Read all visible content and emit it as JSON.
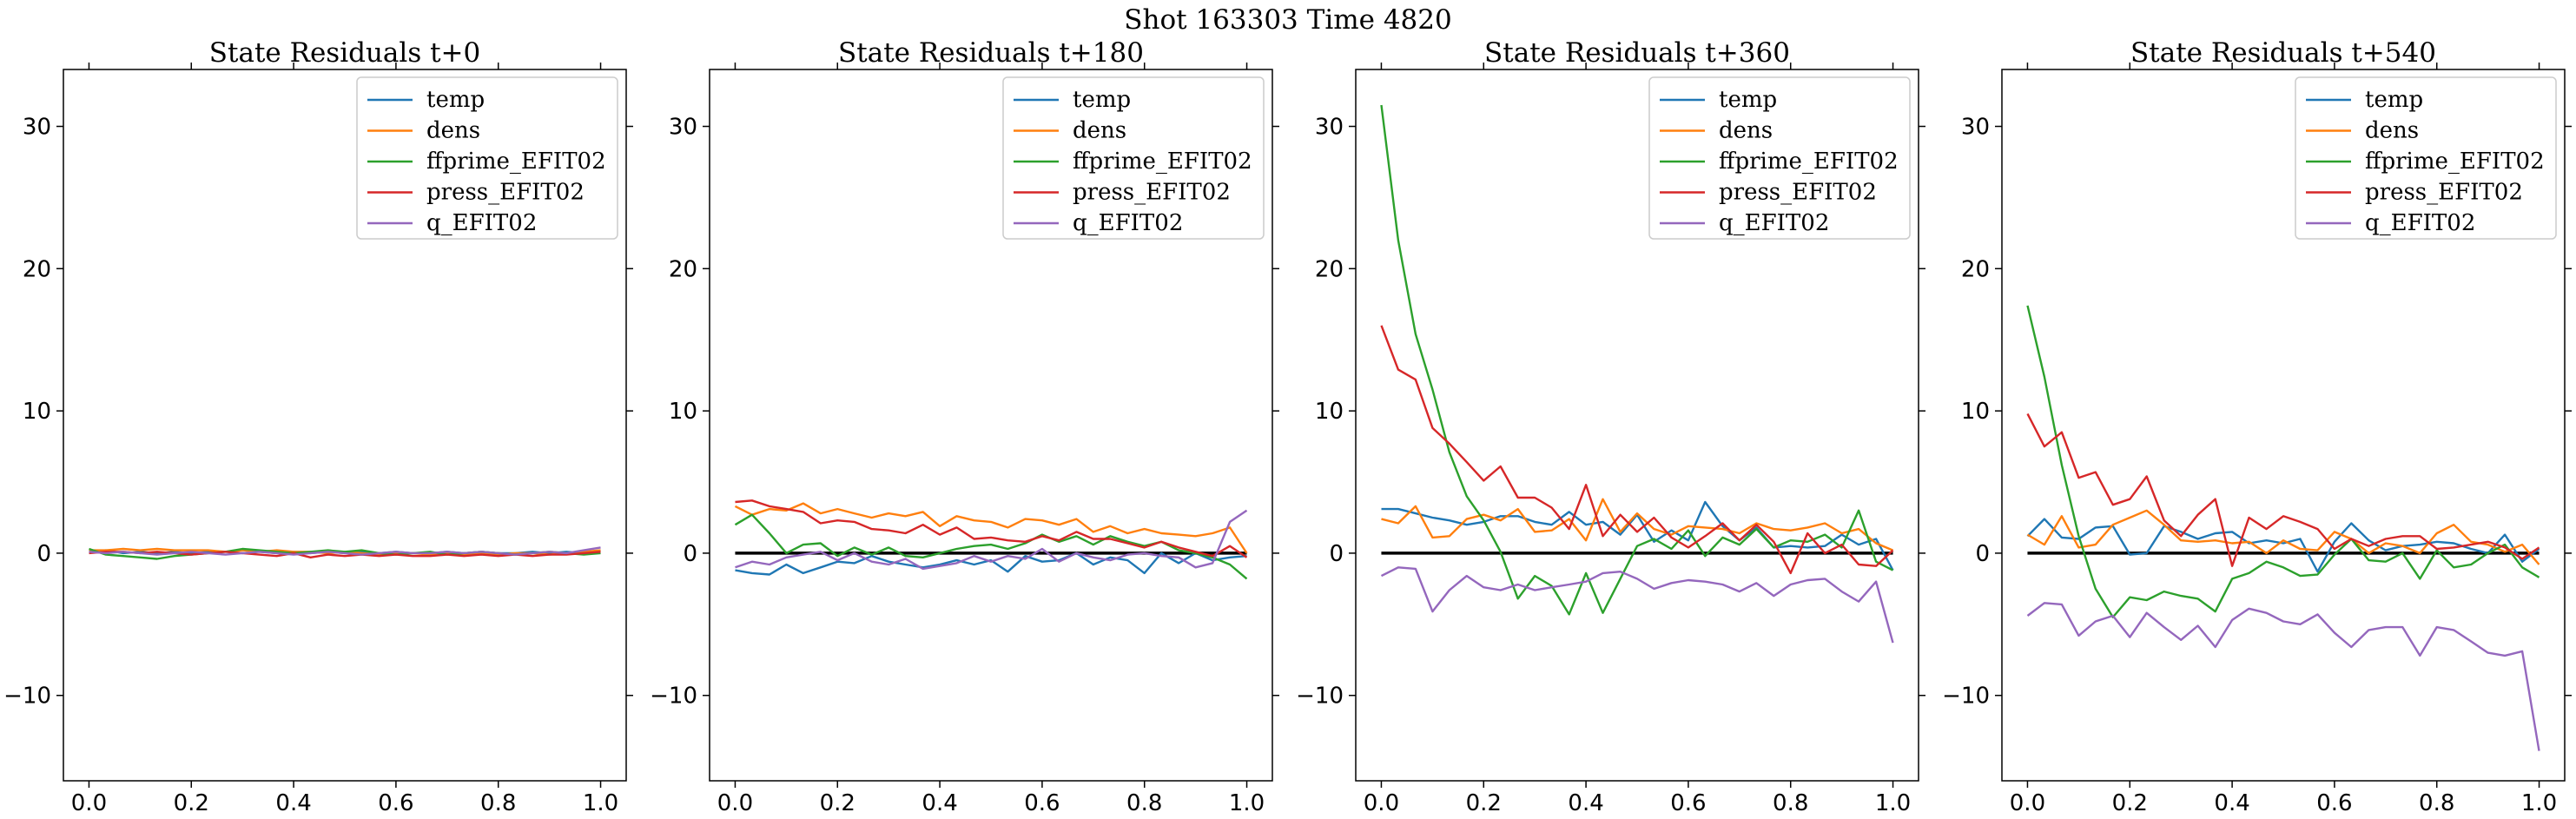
{
  "figure": {
    "suptitle": "Shot 163303   Time 4820"
  },
  "chart_data": [
    {
      "type": "line",
      "title": "State Residuals t+0",
      "xlim": [
        -0.05,
        1.05
      ],
      "ylim": [
        -16,
        34
      ],
      "xticks": [
        0.0,
        0.2,
        0.4,
        0.6,
        0.8,
        1.0
      ],
      "xtick_labels": [
        "0.0",
        "0.2",
        "0.4",
        "0.6",
        "0.8",
        "1.0"
      ],
      "yticks": [
        -10,
        0,
        10,
        20,
        30
      ],
      "ytick_labels": [
        "−10",
        "0",
        "10",
        "20",
        "30"
      ],
      "legend": "top-right",
      "grid": false,
      "zero_line": false,
      "x": [
        0.0,
        0.033,
        0.067,
        0.1,
        0.133,
        0.167,
        0.2,
        0.233,
        0.267,
        0.3,
        0.333,
        0.367,
        0.4,
        0.433,
        0.467,
        0.5,
        0.533,
        0.567,
        0.6,
        0.633,
        0.667,
        0.7,
        0.733,
        0.767,
        0.8,
        0.833,
        0.867,
        0.9,
        0.933,
        0.967,
        1.0
      ],
      "series": [
        {
          "name": "temp",
          "color": "#1f77b4",
          "values": [
            0.1,
            0.2,
            0.0,
            0.1,
            0.0,
            0.1,
            0.0,
            0.1,
            0.1,
            0.0,
            0.1,
            0.0,
            0.1,
            0.0,
            0.1,
            0.0,
            0.1,
            0.0,
            0.1,
            0.0,
            0.0,
            0.1,
            0.0,
            0.1,
            0.0,
            0.0,
            0.1,
            0.0,
            0.1,
            0.0,
            0.2
          ]
        },
        {
          "name": "dens",
          "color": "#ff7f0e",
          "values": [
            0.2,
            0.2,
            0.3,
            0.2,
            0.3,
            0.2,
            0.2,
            0.2,
            0.1,
            0.2,
            0.1,
            0.2,
            0.1,
            0.1,
            0.0,
            0.1,
            0.0,
            -0.1,
            0.0,
            0.0,
            -0.1,
            0.0,
            -0.1,
            0.0,
            -0.1,
            0.0,
            0.0,
            -0.1,
            0.0,
            0.1,
            0.2
          ]
        },
        {
          "name": "ffprime_EFIT02",
          "color": "#2ca02c",
          "values": [
            0.3,
            -0.1,
            -0.2,
            -0.3,
            -0.4,
            -0.2,
            -0.1,
            0.0,
            0.1,
            0.3,
            0.2,
            0.1,
            0.0,
            0.1,
            0.2,
            0.1,
            0.2,
            0.0,
            -0.1,
            0.0,
            0.1,
            -0.1,
            0.0,
            0.1,
            0.0,
            -0.1,
            0.0,
            0.1,
            0.0,
            -0.1,
            0.0
          ]
        },
        {
          "name": "press_EFIT02",
          "color": "#d62728",
          "values": [
            0.0,
            0.1,
            0.1,
            0.0,
            0.1,
            0.0,
            -0.1,
            0.0,
            0.1,
            0.0,
            -0.1,
            -0.2,
            0.0,
            -0.3,
            -0.1,
            -0.2,
            -0.1,
            -0.2,
            -0.1,
            -0.2,
            -0.2,
            -0.1,
            -0.2,
            -0.1,
            -0.2,
            -0.1,
            -0.2,
            -0.1,
            -0.1,
            0.0,
            0.1
          ]
        },
        {
          "name": "q_EFIT02",
          "color": "#9467bd",
          "values": [
            0.1,
            0.0,
            0.1,
            0.0,
            -0.1,
            0.0,
            0.1,
            0.0,
            -0.1,
            0.0,
            0.1,
            0.0,
            -0.1,
            0.0,
            0.1,
            0.0,
            -0.1,
            0.0,
            0.1,
            0.0,
            0.0,
            0.1,
            0.0,
            0.1,
            0.0,
            -0.1,
            0.0,
            0.1,
            0.0,
            0.2,
            0.4
          ]
        }
      ]
    },
    {
      "type": "line",
      "title": "State Residuals t+180",
      "xlim": [
        -0.05,
        1.05
      ],
      "ylim": [
        -16,
        34
      ],
      "xticks": [
        0.0,
        0.2,
        0.4,
        0.6,
        0.8,
        1.0
      ],
      "xtick_labels": [
        "0.0",
        "0.2",
        "0.4",
        "0.6",
        "0.8",
        "1.0"
      ],
      "yticks": [
        -10,
        0,
        10,
        20,
        30
      ],
      "ytick_labels": [
        "−10",
        "0",
        "10",
        "20",
        "30"
      ],
      "legend": "top-right",
      "grid": false,
      "zero_line": true,
      "x": [
        0.0,
        0.033,
        0.067,
        0.1,
        0.133,
        0.167,
        0.2,
        0.233,
        0.267,
        0.3,
        0.333,
        0.367,
        0.4,
        0.433,
        0.467,
        0.5,
        0.533,
        0.567,
        0.6,
        0.633,
        0.667,
        0.7,
        0.733,
        0.767,
        0.8,
        0.833,
        0.867,
        0.9,
        0.933,
        0.967,
        1.0
      ],
      "series": [
        {
          "name": "temp",
          "color": "#1f77b4",
          "values": [
            -1.2,
            -1.4,
            -1.5,
            -0.8,
            -1.4,
            -1.0,
            -0.6,
            -0.7,
            -0.2,
            -0.6,
            -0.8,
            -1.0,
            -0.8,
            -0.5,
            -0.8,
            -0.5,
            -1.3,
            -0.2,
            -0.6,
            -0.5,
            0.0,
            -0.8,
            -0.3,
            -0.5,
            -1.4,
            0.0,
            -0.7,
            0.0,
            -0.5,
            -0.3,
            -0.2
          ]
        },
        {
          "name": "dens",
          "color": "#ff7f0e",
          "values": [
            3.3,
            2.7,
            3.1,
            3.0,
            3.5,
            2.8,
            3.1,
            2.8,
            2.5,
            2.8,
            2.6,
            2.9,
            1.9,
            2.6,
            2.3,
            2.2,
            1.8,
            2.4,
            2.3,
            2.0,
            2.4,
            1.5,
            1.9,
            1.4,
            1.7,
            1.4,
            1.3,
            1.2,
            1.4,
            1.8,
            0.0
          ]
        },
        {
          "name": "ffprime_EFIT02",
          "color": "#2ca02c",
          "values": [
            2.0,
            2.7,
            1.4,
            0.0,
            0.6,
            0.7,
            -0.2,
            0.4,
            -0.1,
            0.4,
            -0.2,
            -0.3,
            0.0,
            0.3,
            0.5,
            0.6,
            0.3,
            0.7,
            1.3,
            0.8,
            1.2,
            0.6,
            1.2,
            0.8,
            0.5,
            0.8,
            0.2,
            0.0,
            -0.3,
            -0.8,
            -1.8
          ]
        },
        {
          "name": "press_EFIT02",
          "color": "#d62728",
          "values": [
            3.6,
            3.7,
            3.3,
            3.1,
            2.9,
            2.1,
            2.3,
            2.2,
            1.7,
            1.6,
            1.4,
            2.0,
            1.3,
            1.8,
            1.0,
            1.1,
            0.9,
            0.8,
            1.2,
            0.9,
            1.5,
            1.0,
            1.0,
            0.7,
            0.4,
            0.8,
            0.4,
            0.1,
            -0.2,
            0.5,
            -0.3
          ]
        },
        {
          "name": "q_EFIT02",
          "color": "#9467bd",
          "values": [
            -1.0,
            -0.6,
            -0.8,
            -0.3,
            -0.1,
            0.1,
            -0.5,
            0.0,
            -0.6,
            -0.8,
            -0.4,
            -1.1,
            -0.9,
            -0.7,
            -0.2,
            -0.6,
            -0.2,
            -0.4,
            0.3,
            -0.6,
            0.0,
            -0.3,
            -0.5,
            -0.1,
            0.0,
            -0.2,
            -0.3,
            -1.0,
            -0.7,
            2.2,
            3.0
          ]
        }
      ]
    },
    {
      "type": "line",
      "title": "State Residuals t+360",
      "xlim": [
        -0.05,
        1.05
      ],
      "ylim": [
        -16,
        34
      ],
      "xticks": [
        0.0,
        0.2,
        0.4,
        0.6,
        0.8,
        1.0
      ],
      "xtick_labels": [
        "0.0",
        "0.2",
        "0.4",
        "0.6",
        "0.8",
        "1.0"
      ],
      "yticks": [
        -10,
        0,
        10,
        20,
        30
      ],
      "ytick_labels": [
        "−10",
        "0",
        "10",
        "20",
        "30"
      ],
      "legend": "top-right",
      "grid": false,
      "zero_line": true,
      "x": [
        0.0,
        0.033,
        0.067,
        0.1,
        0.133,
        0.167,
        0.2,
        0.233,
        0.267,
        0.3,
        0.333,
        0.367,
        0.4,
        0.433,
        0.467,
        0.5,
        0.533,
        0.567,
        0.6,
        0.633,
        0.667,
        0.7,
        0.733,
        0.767,
        0.8,
        0.833,
        0.867,
        0.9,
        0.933,
        0.967,
        1.0
      ],
      "series": [
        {
          "name": "temp",
          "color": "#1f77b4",
          "values": [
            3.1,
            3.1,
            2.8,
            2.5,
            2.3,
            2.0,
            2.2,
            2.6,
            2.6,
            2.2,
            2.0,
            2.9,
            2.0,
            2.2,
            1.3,
            2.7,
            0.8,
            1.6,
            0.9,
            3.6,
            1.9,
            0.9,
            1.8,
            0.4,
            0.5,
            0.4,
            0.5,
            1.3,
            0.6,
            1.0,
            -1.2
          ]
        },
        {
          "name": "dens",
          "color": "#ff7f0e",
          "values": [
            2.4,
            2.1,
            3.3,
            1.1,
            1.2,
            2.4,
            2.7,
            2.3,
            3.1,
            1.5,
            1.6,
            2.4,
            0.9,
            3.8,
            1.5,
            2.8,
            1.7,
            1.3,
            1.9,
            1.8,
            1.7,
            1.4,
            2.1,
            1.7,
            1.6,
            1.8,
            2.1,
            1.4,
            1.7,
            0.7,
            0.2
          ]
        },
        {
          "name": "ffprime_EFIT02",
          "color": "#2ca02c",
          "values": [
            31.5,
            22.0,
            15.4,
            11.5,
            7.1,
            4.0,
            2.3,
            0.1,
            -3.2,
            -1.6,
            -2.3,
            -4.3,
            -1.4,
            -4.2,
            -1.8,
            0.5,
            1.0,
            0.3,
            1.6,
            -0.2,
            1.1,
            0.6,
            1.7,
            0.4,
            0.9,
            0.8,
            1.3,
            0.4,
            3.0,
            -0.6,
            -1.2
          ]
        },
        {
          "name": "press_EFIT02",
          "color": "#d62728",
          "values": [
            16.0,
            12.9,
            12.2,
            8.8,
            7.7,
            6.4,
            5.1,
            6.1,
            3.9,
            3.9,
            3.2,
            1.7,
            4.8,
            1.2,
            2.7,
            1.5,
            2.5,
            1.1,
            0.4,
            1.2,
            2.1,
            0.9,
            2.0,
            0.8,
            -1.4,
            1.4,
            0.0,
            0.6,
            -0.8,
            -0.9,
            0.2
          ]
        },
        {
          "name": "q_EFIT02",
          "color": "#9467bd",
          "values": [
            -1.6,
            -1.0,
            -1.1,
            -4.1,
            -2.6,
            -1.6,
            -2.4,
            -2.6,
            -2.2,
            -2.6,
            -2.4,
            -2.2,
            -2.0,
            -1.4,
            -1.3,
            -1.8,
            -2.5,
            -2.1,
            -1.9,
            -2.0,
            -2.2,
            -2.7,
            -2.1,
            -3.0,
            -2.2,
            -1.9,
            -1.8,
            -2.7,
            -3.4,
            -2.0,
            -6.3
          ]
        }
      ]
    },
    {
      "type": "line",
      "title": "State Residuals t+540",
      "xlim": [
        -0.05,
        1.05
      ],
      "ylim": [
        -16,
        34
      ],
      "xticks": [
        0.0,
        0.2,
        0.4,
        0.6,
        0.8,
        1.0
      ],
      "xtick_labels": [
        "0.0",
        "0.2",
        "0.4",
        "0.6",
        "0.8",
        "1.0"
      ],
      "yticks": [
        -10,
        0,
        10,
        20,
        30
      ],
      "ytick_labels": [
        "−10",
        "0",
        "10",
        "20",
        "30"
      ],
      "legend": "top-right",
      "grid": false,
      "zero_line": true,
      "x": [
        0.0,
        0.033,
        0.067,
        0.1,
        0.133,
        0.167,
        0.2,
        0.233,
        0.267,
        0.3,
        0.333,
        0.367,
        0.4,
        0.433,
        0.467,
        0.5,
        0.533,
        0.567,
        0.6,
        0.633,
        0.667,
        0.7,
        0.733,
        0.767,
        0.8,
        0.833,
        0.867,
        0.9,
        0.933,
        0.967,
        1.0
      ],
      "series": [
        {
          "name": "temp",
          "color": "#1f77b4",
          "values": [
            1.2,
            2.4,
            1.1,
            1.0,
            1.8,
            1.9,
            -0.1,
            0.0,
            1.9,
            1.5,
            1.0,
            1.4,
            1.5,
            0.7,
            0.9,
            0.7,
            1.0,
            -1.3,
            0.8,
            2.1,
            0.9,
            0.2,
            0.5,
            0.6,
            0.8,
            0.7,
            0.3,
            0.0,
            1.3,
            -0.6,
            0.3
          ]
        },
        {
          "name": "dens",
          "color": "#ff7f0e",
          "values": [
            1.3,
            0.6,
            2.6,
            0.4,
            0.6,
            2.0,
            2.5,
            3.0,
            2.0,
            0.9,
            0.8,
            0.9,
            0.7,
            0.8,
            0.0,
            0.9,
            0.3,
            0.2,
            1.5,
            1.0,
            0.0,
            0.7,
            0.5,
            0.0,
            1.4,
            2.0,
            0.8,
            0.6,
            0.1,
            0.6,
            -0.8
          ]
        },
        {
          "name": "ffprime_EFIT02",
          "color": "#2ca02c",
          "values": [
            17.4,
            12.4,
            6.2,
            1.2,
            -2.5,
            -4.5,
            -3.1,
            -3.3,
            -2.7,
            -3.0,
            -3.2,
            -4.1,
            -1.8,
            -1.4,
            -0.6,
            -1.0,
            -1.6,
            -1.5,
            -0.1,
            1.0,
            -0.5,
            -0.6,
            0.0,
            -1.8,
            0.2,
            -1.0,
            -0.8,
            0.0,
            0.6,
            -1.0,
            -1.7
          ]
        },
        {
          "name": "press_EFIT02",
          "color": "#d62728",
          "values": [
            9.8,
            7.5,
            8.5,
            5.3,
            5.7,
            3.4,
            3.8,
            5.4,
            2.3,
            1.2,
            2.7,
            3.8,
            -0.9,
            2.5,
            1.7,
            2.6,
            2.2,
            1.7,
            0.3,
            1.0,
            0.5,
            1.0,
            1.2,
            1.2,
            0.3,
            0.4,
            0.6,
            0.8,
            0.4,
            -0.4,
            0.4
          ]
        },
        {
          "name": "q_EFIT02",
          "color": "#9467bd",
          "values": [
            -4.4,
            -3.5,
            -3.6,
            -5.8,
            -4.8,
            -4.4,
            -5.9,
            -4.2,
            -5.2,
            -6.1,
            -5.1,
            -6.6,
            -4.7,
            -3.9,
            -4.2,
            -4.8,
            -5.0,
            -4.3,
            -5.6,
            -6.6,
            -5.4,
            -5.2,
            -5.2,
            -7.2,
            -5.2,
            -5.4,
            -6.2,
            -7.0,
            -7.2,
            -6.9,
            -13.9
          ]
        }
      ]
    }
  ]
}
